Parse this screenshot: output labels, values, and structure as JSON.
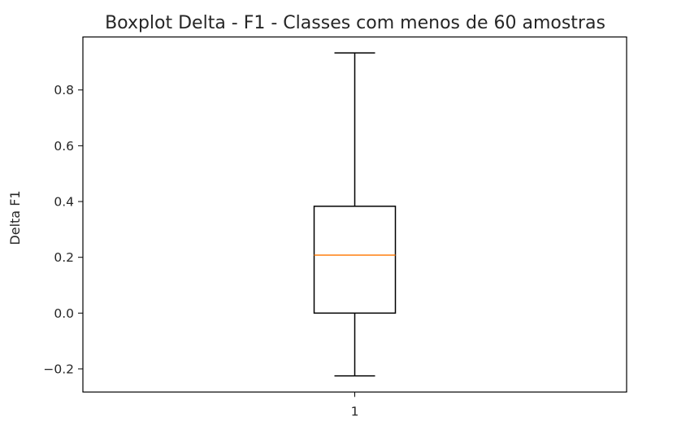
{
  "chart_data": {
    "type": "boxplot",
    "title": "Boxplot Delta - F1 - Classes com menos de 60 amostras",
    "xlabel": "",
    "ylabel": "Delta F1",
    "categories": [
      "1"
    ],
    "boxes": [
      {
        "category": "1",
        "whisker_low": -0.225,
        "q1": 0.0,
        "median": 0.208,
        "q3": 0.383,
        "whisker_high": 0.933
      }
    ],
    "ylim": [
      -0.283,
      0.99
    ],
    "yticks": [
      -0.2,
      0.0,
      0.2,
      0.4,
      0.6,
      0.8
    ],
    "ytick_labels": [
      "−0.2",
      "0.0",
      "0.2",
      "0.4",
      "0.6",
      "0.8"
    ],
    "grid": false,
    "colors": {
      "box": "#000000",
      "median": "#ff7f0e"
    }
  }
}
